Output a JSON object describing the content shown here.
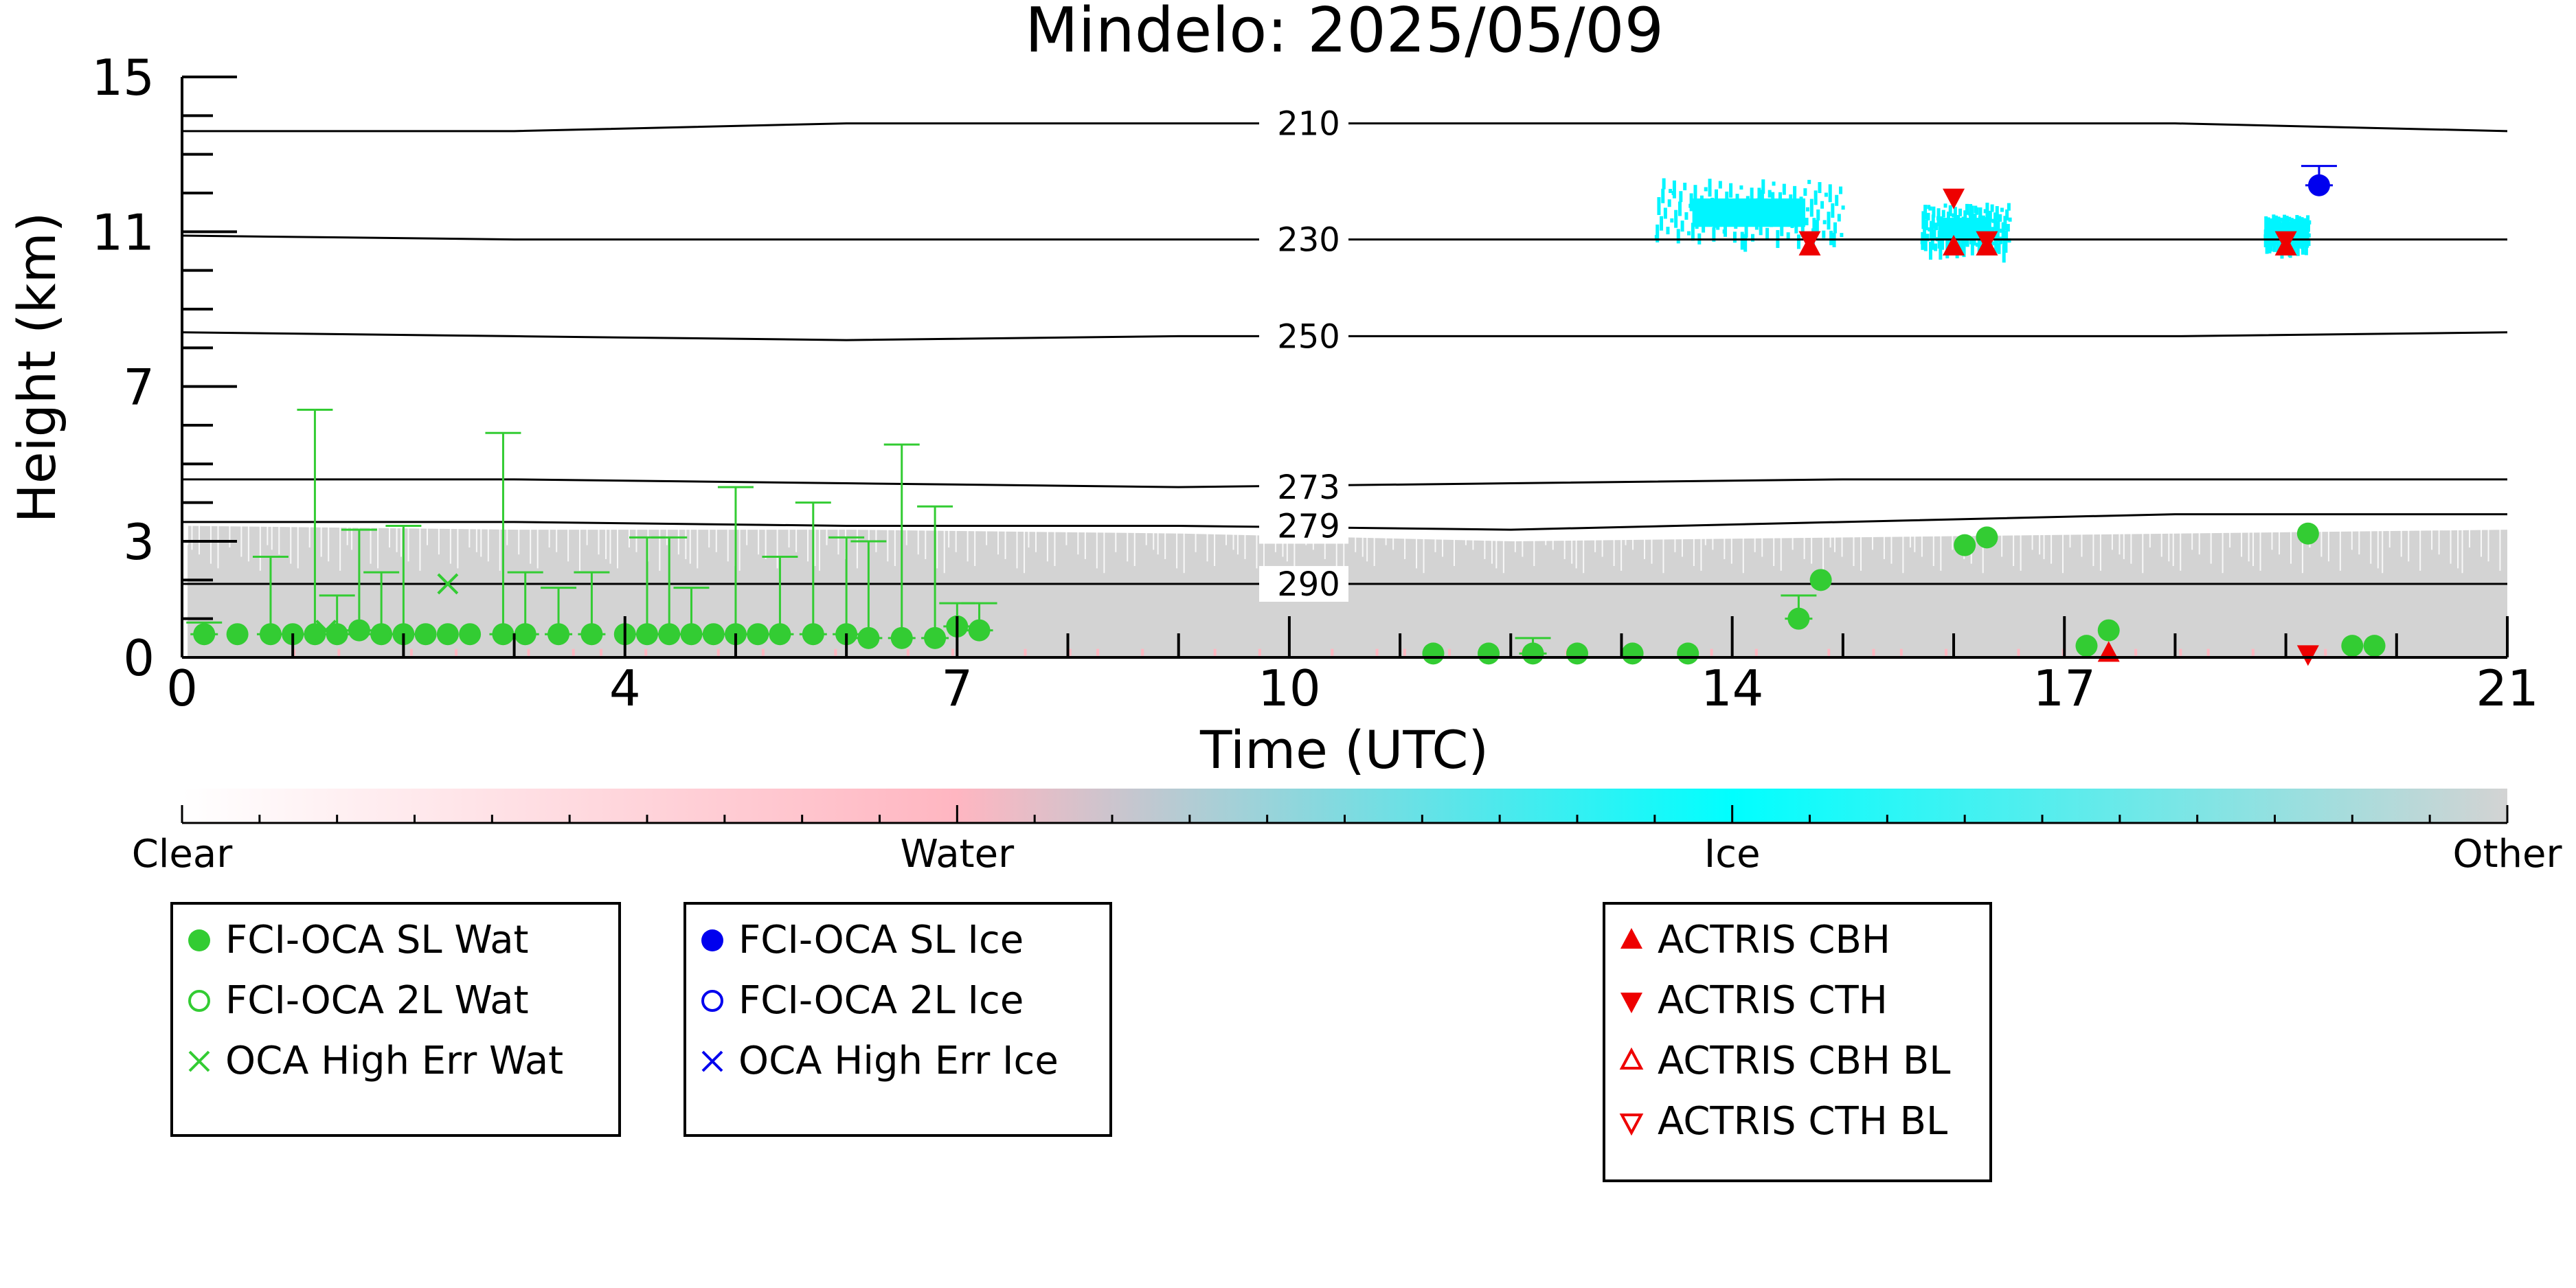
{
  "chart_data": {
    "type": "scatter",
    "title": "Mindelo: 2025/05/09",
    "xlabel": "Time (UTC)",
    "ylabel": "Height (km)",
    "xlim": [
      0,
      21
    ],
    "ylim": [
      0,
      15
    ],
    "x_ticks": [
      "0",
      "4",
      "7",
      "10",
      "14",
      "17",
      "21"
    ],
    "y_ticks": [
      "0",
      "3",
      "7",
      "11",
      "15"
    ],
    "isotherms": [
      {
        "label": "210",
        "values": [
          13.6,
          13.6,
          13.8,
          13.8,
          13.8,
          13.8,
          13.8,
          13.6
        ]
      },
      {
        "label": "230",
        "values": [
          10.9,
          10.8,
          10.8,
          10.8,
          10.8,
          10.8,
          10.8,
          10.8
        ]
      },
      {
        "label": "250",
        "values": [
          8.4,
          8.3,
          8.2,
          8.3,
          8.3,
          8.3,
          8.3,
          8.4
        ]
      },
      {
        "label": "273",
        "values": [
          4.6,
          4.6,
          4.5,
          4.4,
          4.5,
          4.6,
          4.6,
          4.6
        ]
      },
      {
        "label": "279",
        "values": [
          3.5,
          3.5,
          3.4,
          3.4,
          3.3,
          3.5,
          3.7,
          3.7
        ]
      },
      {
        "label": "290",
        "values": [
          1.9,
          1.9,
          1.9,
          1.9,
          1.9,
          1.9,
          1.9,
          1.9
        ]
      }
    ],
    "isotherm_x": [
      0,
      3,
      6,
      9,
      12,
      15,
      18,
      21
    ],
    "series": [
      {
        "name": "FCI-OCA SL Wat",
        "color": "#33cc33",
        "marker": "filled-circle",
        "points": [
          {
            "x": 0.2,
            "y": 0.6,
            "err": 0.3
          },
          {
            "x": 0.5,
            "y": 0.6
          },
          {
            "x": 0.8,
            "y": 0.6,
            "err": 2.0
          },
          {
            "x": 1.0,
            "y": 0.6
          },
          {
            "x": 1.2,
            "y": 0.6,
            "err": 5.8
          },
          {
            "x": 1.4,
            "y": 0.6,
            "err": 1.0
          },
          {
            "x": 1.6,
            "y": 0.7,
            "err": 2.6
          },
          {
            "x": 1.8,
            "y": 0.6,
            "err": 1.6
          },
          {
            "x": 2.0,
            "y": 0.6,
            "err": 2.8
          },
          {
            "x": 2.2,
            "y": 0.6
          },
          {
            "x": 2.4,
            "y": 0.6
          },
          {
            "x": 2.6,
            "y": 0.6
          },
          {
            "x": 2.9,
            "y": 0.6,
            "err": 5.2
          },
          {
            "x": 3.1,
            "y": 0.6,
            "err": 1.6
          },
          {
            "x": 3.4,
            "y": 0.6,
            "err": 1.2
          },
          {
            "x": 3.7,
            "y": 0.6,
            "err": 1.6
          },
          {
            "x": 4.0,
            "y": 0.6
          },
          {
            "x": 4.2,
            "y": 0.6,
            "err": 2.5
          },
          {
            "x": 4.4,
            "y": 0.6,
            "err": 2.5
          },
          {
            "x": 4.6,
            "y": 0.6,
            "err": 1.2
          },
          {
            "x": 4.8,
            "y": 0.6
          },
          {
            "x": 5.0,
            "y": 0.6,
            "err": 3.8
          },
          {
            "x": 5.2,
            "y": 0.6
          },
          {
            "x": 5.4,
            "y": 0.6,
            "err": 2.0
          },
          {
            "x": 5.7,
            "y": 0.6,
            "err": 3.4
          },
          {
            "x": 6.0,
            "y": 0.6,
            "err": 2.5
          },
          {
            "x": 6.2,
            "y": 0.5,
            "err": 2.5
          },
          {
            "x": 6.5,
            "y": 0.5,
            "err": 5.0
          },
          {
            "x": 6.8,
            "y": 0.5,
            "err": 3.4
          },
          {
            "x": 7.0,
            "y": 0.8,
            "err": 0.6
          },
          {
            "x": 7.2,
            "y": 0.7,
            "err": 0.7
          },
          {
            "x": 11.3,
            "y": 0.1
          },
          {
            "x": 11.8,
            "y": 0.1
          },
          {
            "x": 12.2,
            "y": 0.1,
            "err": 0.4
          },
          {
            "x": 12.6,
            "y": 0.1
          },
          {
            "x": 13.1,
            "y": 0.1
          },
          {
            "x": 13.6,
            "y": 0.1
          },
          {
            "x": 14.6,
            "y": 1.0,
            "err": 0.6
          },
          {
            "x": 14.8,
            "y": 2.0
          },
          {
            "x": 16.1,
            "y": 2.9
          },
          {
            "x": 16.3,
            "y": 3.1
          },
          {
            "x": 17.2,
            "y": 0.3
          },
          {
            "x": 17.4,
            "y": 0.7
          },
          {
            "x": 19.2,
            "y": 3.2
          },
          {
            "x": 19.6,
            "y": 0.3
          },
          {
            "x": 19.8,
            "y": 0.3
          }
        ]
      },
      {
        "name": "FCI-OCA 2L Wat",
        "color": "#33cc33",
        "marker": "open-circle",
        "points": []
      },
      {
        "name": "OCA High Err Wat",
        "color": "#33cc33",
        "marker": "x",
        "points": [
          {
            "x": 2.4,
            "y": 1.9
          },
          {
            "x": 1.3,
            "y": 0.7
          }
        ]
      },
      {
        "name": "FCI-OCA SL Ice",
        "color": "#0000ee",
        "marker": "filled-circle",
        "points": [
          {
            "x": 19.3,
            "y": 12.2,
            "err": 0.5
          }
        ]
      },
      {
        "name": "FCI-OCA 2L Ice",
        "color": "#0000ee",
        "marker": "open-circle",
        "points": []
      },
      {
        "name": "OCA High Err Ice",
        "color": "#0000ee",
        "marker": "x",
        "points": []
      },
      {
        "name": "ACTRIS CBH",
        "color": "#ee0000",
        "marker": "triangle-up",
        "points": [
          {
            "x": 14.7,
            "y": 10.6
          },
          {
            "x": 16.0,
            "y": 10.6
          },
          {
            "x": 16.3,
            "y": 10.6
          },
          {
            "x": 19.0,
            "y": 10.6
          },
          {
            "x": 17.4,
            "y": 0.1
          }
        ]
      },
      {
        "name": "ACTRIS CTH",
        "color": "#ee0000",
        "marker": "triangle-down",
        "points": [
          {
            "x": 14.7,
            "y": 10.8
          },
          {
            "x": 16.0,
            "y": 11.9
          },
          {
            "x": 16.3,
            "y": 10.8
          },
          {
            "x": 19.0,
            "y": 10.8
          },
          {
            "x": 19.2,
            "y": 0.1
          }
        ]
      },
      {
        "name": "ACTRIS CBH BL",
        "color": "#ee0000",
        "marker": "open-triangle-up",
        "points": []
      },
      {
        "name": "ACTRIS CTH BL",
        "color": "#ee0000",
        "marker": "open-triangle-down",
        "points": []
      }
    ],
    "background": {
      "other_layer": {
        "color": "#d3d3d3",
        "x_start": 0.05,
        "x_end": 21,
        "top_km": [
          3.4,
          3.3,
          3.3,
          3.2,
          3.0,
          3.1,
          3.2,
          3.3
        ]
      },
      "ice_clouds": [
        {
          "x0": 13.3,
          "x1": 15.0,
          "y0": 10.6,
          "y1": 12.7
        },
        {
          "x0": 15.7,
          "x1": 16.5,
          "y0": 10.4,
          "y1": 12.0
        },
        {
          "x0": 18.8,
          "x1": 19.2,
          "y0": 10.6,
          "y1": 11.6
        }
      ]
    },
    "colorbar": {
      "labels": [
        "Clear",
        "Water",
        "Ice",
        "Other"
      ],
      "colors": [
        "#ffffff",
        "#ffb6c1",
        "#00ffff",
        "#d3d3d3"
      ]
    },
    "legend_groups": [
      [
        "FCI-OCA SL Wat",
        "FCI-OCA 2L Wat",
        "OCA High Err Wat"
      ],
      [
        "FCI-OCA SL Ice",
        "FCI-OCA 2L Ice",
        "OCA High Err Ice"
      ],
      [
        "ACTRIS CBH",
        "ACTRIS CTH",
        "ACTRIS CBH BL",
        "ACTRIS CTH BL"
      ]
    ]
  }
}
